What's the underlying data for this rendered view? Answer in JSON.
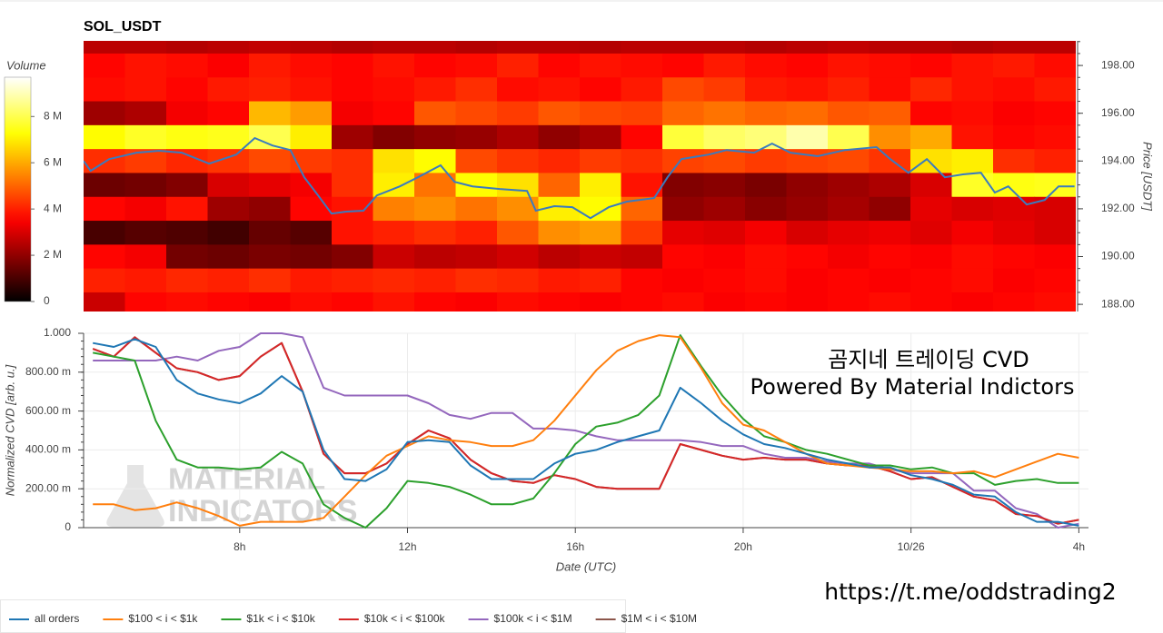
{
  "chart_data": [
    {
      "type": "heatmap",
      "title": "SOL_USDT",
      "y_label": "Price [USDT]",
      "colorbar_label": "Volume",
      "colormap": "hot",
      "xlim": [
        4.28,
        27.93
      ],
      "y": [
        199,
        198,
        197,
        196,
        195,
        194,
        193,
        192,
        191,
        190,
        189,
        188
      ],
      "ylim": [
        187.7,
        199.03
      ],
      "yticks": [
        {
          "value": 188,
          "label": "188.00"
        },
        {
          "value": 190,
          "label": "190.00"
        },
        {
          "value": 192,
          "label": "192.00"
        },
        {
          "value": 194,
          "label": "194.00"
        },
        {
          "value": 196,
          "label": "196.00"
        },
        {
          "value": 198,
          "label": "198.00"
        }
      ],
      "clim": [
        0,
        9700000.0
      ],
      "cticks": [
        0,
        {
          "value": 2000000.0,
          "label": "2 M"
        },
        {
          "value": 4000000.0,
          "label": "4 M"
        },
        {
          "value": 6000000.0,
          "label": "6 M"
        },
        {
          "value": 8000000.0,
          "label": "8 M"
        }
      ],
      "values": [
        [
          2600000.0,
          2600000.0,
          2500000.0,
          2600000.0,
          2700000.0,
          2600000.0,
          2500000.0,
          2600000.0,
          2600000.0,
          2500000.0,
          2600000.0,
          2600000.0,
          2500000.0,
          2600000.0,
          2600000.0,
          2600000.0,
          2500000.0,
          2600000.0,
          2700000.0,
          2600000.0,
          2600000.0,
          2500000.0,
          2600000.0,
          2600000.0
        ],
        [
          3600000.0,
          3800000.0,
          3700000.0,
          3500000.0,
          3900000.0,
          3700000.0,
          3600000.0,
          3800000.0,
          3600000.0,
          3700000.0,
          4000000.0,
          3600000.0,
          3800000.0,
          3700000.0,
          3600000.0,
          3900000.0,
          3700000.0,
          3600000.0,
          3800000.0,
          3700000.0,
          3600000.0,
          3800000.0,
          3900000.0,
          3700000.0
        ],
        [
          3700000.0,
          3800000.0,
          3600000.0,
          3900000.0,
          4000000.0,
          3800000.0,
          3600000.0,
          3700000.0,
          3900000.0,
          4200000.0,
          3700000.0,
          3800000.0,
          3600000.0,
          3900000.0,
          4600000.0,
          4400000.0,
          3900000.0,
          3800000.0,
          4000000.0,
          3700000.0,
          4100000.0,
          3800000.0,
          3700000.0,
          3900000.0
        ],
        [
          2200000.0,
          2400000.0,
          3400000.0,
          3600000.0,
          6200000.0,
          5800000.0,
          3400000.0,
          3600000.0,
          4800000.0,
          4600000.0,
          4400000.0,
          4800000.0,
          4600000.0,
          4500000.0,
          5000000.0,
          5200000.0,
          5000000.0,
          5100000.0,
          4800000.0,
          4900000.0,
          3600000.0,
          3700000.0,
          3500000.0,
          3600000.0
        ],
        [
          7200000.0,
          7600000.0,
          7400000.0,
          7500000.0,
          8000000.0,
          7000000.0,
          2200000.0,
          1800000.0,
          2000000.0,
          2100000.0,
          2400000.0,
          2000000.0,
          2300000.0,
          3600000.0,
          7800000.0,
          8200000.0,
          8400000.0,
          8900000.0,
          8000000.0,
          5600000.0,
          6000000.0,
          3800000.0,
          3600000.0,
          3700000.0
        ],
        [
          4200000.0,
          4400000.0,
          4100000.0,
          4300000.0,
          4600000.0,
          4400000.0,
          4200000.0,
          6800000.0,
          7200000.0,
          4600000.0,
          4300000.0,
          4100000.0,
          4400000.0,
          4200000.0,
          4500000.0,
          4600000.0,
          4400000.0,
          4500000.0,
          4600000.0,
          4300000.0,
          6800000.0,
          7000000.0,
          4200000.0,
          4000000.0
        ],
        [
          1500000.0,
          1600000.0,
          1800000.0,
          3000000.0,
          3200000.0,
          3400000.0,
          4200000.0,
          7000000.0,
          5200000.0,
          7200000.0,
          6800000.0,
          5000000.0,
          7000000.0,
          3800000.0,
          1800000.0,
          1900000.0,
          1700000.0,
          2000000.0,
          2200000.0,
          2400000.0,
          3000000.0,
          7600000.0,
          7400000.0,
          7500000.0
        ],
        [
          3600000.0,
          3400000.0,
          3800000.0,
          2200000.0,
          2000000.0,
          3600000.0,
          3800000.0,
          5400000.0,
          5600000.0,
          5200000.0,
          5600000.0,
          7000000.0,
          7200000.0,
          5000000.0,
          2000000.0,
          2200000.0,
          1900000.0,
          2100000.0,
          2300000.0,
          2000000.0,
          3200000.0,
          3000000.0,
          3100000.0,
          3000000.0
        ],
        [
          1000000.0,
          1200000.0,
          1100000.0,
          900000.0,
          1400000.0,
          1200000.0,
          3800000.0,
          4000000.0,
          4200000.0,
          4000000.0,
          4800000.0,
          5600000.0,
          5800000.0,
          4400000.0,
          3200000.0,
          3100000.0,
          3400000.0,
          3000000.0,
          3200000.0,
          3300000.0,
          3100000.0,
          3400000.0,
          3200000.0,
          3000000.0
        ],
        [
          3600000.0,
          3400000.0,
          1600000.0,
          1500000.0,
          1700000.0,
          1600000.0,
          1800000.0,
          2800000.0,
          2600000.0,
          2700000.0,
          2900000.0,
          2600000.0,
          2800000.0,
          2700000.0,
          3600000.0,
          3500000.0,
          3700000.0,
          3600000.0,
          3400000.0,
          3600000.0,
          3500000.0,
          3700000.0,
          3600000.0,
          3500000.0
        ],
        [
          4000000.0,
          3900000.0,
          4100000.0,
          4000000.0,
          4200000.0,
          3900000.0,
          4000000.0,
          4100000.0,
          4000000.0,
          4200000.0,
          4100000.0,
          3900000.0,
          4000000.0,
          3600000.0,
          3500000.0,
          3600000.0,
          3700000.0,
          3500000.0,
          3600000.0,
          3500000.0,
          3600000.0,
          3700000.0,
          3500000.0,
          3600000.0
        ],
        [
          2800000.0,
          3600000.0,
          3700000.0,
          3600000.0,
          3500000.0,
          3700000.0,
          3600000.0,
          3800000.0,
          3600000.0,
          3500000.0,
          3700000.0,
          3600000.0,
          3500000.0,
          3600000.0,
          3700000.0,
          3500000.0,
          3600000.0,
          3500000.0,
          3600000.0,
          3700000.0,
          3600000.0,
          3500000.0,
          3600000.0,
          3700000.0
        ]
      ],
      "line": {
        "color": "#3a7bbf",
        "x": [
          4.28,
          4.45,
          4.89,
          5.54,
          6.08,
          6.62,
          7.27,
          7.92,
          8.36,
          8.78,
          9.21,
          9.54,
          9.87,
          10.19,
          10.52,
          10.95,
          11.27,
          11.82,
          12.25,
          12.79,
          13.12,
          13.55,
          14.2,
          14.85,
          15.06,
          15.5,
          15.93,
          16.36,
          16.8,
          17.23,
          17.88,
          18.2,
          18.53,
          19.18,
          19.61,
          20.26,
          20.69,
          21.13,
          21.78,
          22.43,
          23.18,
          23.51,
          23.94,
          24.38,
          24.81,
          25.24,
          25.67,
          26.0,
          26.32,
          26.76,
          27.19,
          27.52,
          27.9
        ],
        "values": [
          194.0,
          193.59,
          194.08,
          194.35,
          194.43,
          194.35,
          193.89,
          194.27,
          194.96,
          194.65,
          194.46,
          193.32,
          192.56,
          191.8,
          191.88,
          191.92,
          192.56,
          192.94,
          193.32,
          193.82,
          193.13,
          192.94,
          192.83,
          192.75,
          191.92,
          192.11,
          192.07,
          191.61,
          192.07,
          192.3,
          192.45,
          193.32,
          194.08,
          194.27,
          194.46,
          194.35,
          194.73,
          194.35,
          194.2,
          194.46,
          194.58,
          194.08,
          193.51,
          194.08,
          193.32,
          193.44,
          193.51,
          192.68,
          192.94,
          192.18,
          192.37,
          192.94,
          192.94
        ]
      }
    },
    {
      "type": "line",
      "x_label": "Date (UTC)",
      "y_label": "Normalized CVD [arb. u.]",
      "grid": true,
      "xlim": [
        4.28,
        28.23
      ],
      "xticks": [
        {
          "value": 8,
          "label": "8h"
        },
        {
          "value": 12,
          "label": "12h"
        },
        {
          "value": 16,
          "label": "16h"
        },
        {
          "value": 20,
          "label": "20h"
        },
        {
          "value": 24,
          "label": "10/26"
        },
        {
          "value": 28,
          "label": "4h"
        }
      ],
      "ylim": [
        0,
        1
      ],
      "yticks": [
        0,
        {
          "value": 0.2,
          "label": "200.00 m"
        },
        {
          "value": 0.4,
          "label": "400.00 m"
        },
        {
          "value": 0.6,
          "label": "600.00 m"
        },
        {
          "value": 0.8,
          "label": "800.00 m"
        },
        {
          "value": 1,
          "label": "1.000"
        }
      ],
      "x": [
        4.5,
        5,
        5.5,
        6,
        6.5,
        7,
        7.5,
        8,
        8.5,
        9,
        9.5,
        10,
        10.5,
        11,
        11.5,
        12,
        12.5,
        13,
        13.5,
        14,
        14.5,
        15,
        15.5,
        16,
        16.5,
        17,
        17.5,
        18,
        18.5,
        19,
        19.5,
        20,
        20.5,
        21,
        21.5,
        22,
        22.5,
        23,
        23.5,
        24,
        24.5,
        25,
        25.5,
        26,
        26.5,
        27,
        27.5,
        28
      ],
      "series": [
        {
          "name": "all orders",
          "color": "#1f77b4",
          "values": [
            0.95,
            0.93,
            0.97,
            0.93,
            0.76,
            0.69,
            0.66,
            0.64,
            0.69,
            0.78,
            0.7,
            0.4,
            0.25,
            0.24,
            0.3,
            0.44,
            0.45,
            0.44,
            0.32,
            0.25,
            0.25,
            0.25,
            0.33,
            0.38,
            0.4,
            0.44,
            0.47,
            0.5,
            0.72,
            0.64,
            0.55,
            0.48,
            0.43,
            0.41,
            0.38,
            0.35,
            0.33,
            0.31,
            0.31,
            0.27,
            0.25,
            0.22,
            0.17,
            0.16,
            0.08,
            0.03,
            0.03,
            0.01
          ]
        },
        {
          "name": "$100 < i < $1k",
          "color": "#ff7f0e",
          "values": [
            0.12,
            0.12,
            0.09,
            0.1,
            0.13,
            0.1,
            0.06,
            0.01,
            0.03,
            0.03,
            0.03,
            0.05,
            0.16,
            0.27,
            0.37,
            0.42,
            0.47,
            0.45,
            0.44,
            0.42,
            0.42,
            0.45,
            0.55,
            0.68,
            0.81,
            0.91,
            0.96,
            0.99,
            0.98,
            0.82,
            0.64,
            0.53,
            0.5,
            0.44,
            0.38,
            0.33,
            0.32,
            0.31,
            0.3,
            0.29,
            0.29,
            0.28,
            0.29,
            0.26,
            0.3,
            0.34,
            0.38,
            0.36
          ]
        },
        {
          "name": "$1k < i < $10k",
          "color": "#2ca02c",
          "values": [
            0.9,
            0.88,
            0.86,
            0.55,
            0.35,
            0.31,
            0.31,
            0.3,
            0.31,
            0.39,
            0.33,
            0.12,
            0.05,
            0,
            0.1,
            0.24,
            0.23,
            0.21,
            0.17,
            0.12,
            0.12,
            0.15,
            0.28,
            0.43,
            0.52,
            0.54,
            0.58,
            0.68,
            0.99,
            0.83,
            0.68,
            0.56,
            0.47,
            0.44,
            0.4,
            0.38,
            0.35,
            0.32,
            0.32,
            0.3,
            0.31,
            0.28,
            0.28,
            0.22,
            0.24,
            0.25,
            0.23,
            0.23
          ]
        },
        {
          "name": "$10k < i < $100k",
          "color": "#d62728",
          "values": [
            0.92,
            0.88,
            0.98,
            0.9,
            0.82,
            0.8,
            0.76,
            0.78,
            0.88,
            0.95,
            0.7,
            0.38,
            0.28,
            0.28,
            0.33,
            0.43,
            0.5,
            0.46,
            0.35,
            0.28,
            0.24,
            0.23,
            0.27,
            0.25,
            0.21,
            0.2,
            0.2,
            0.2,
            0.43,
            0.4,
            0.37,
            0.35,
            0.36,
            0.35,
            0.35,
            0.33,
            0.32,
            0.32,
            0.29,
            0.25,
            0.26,
            0.21,
            0.16,
            0.14,
            0.07,
            0.06,
            0.02,
            0.04
          ]
        },
        {
          "name": "$100k < i < $1M",
          "color": "#9467bd",
          "values": [
            0.86,
            0.86,
            0.86,
            0.86,
            0.88,
            0.86,
            0.91,
            0.93,
            1,
            1,
            0.98,
            0.72,
            0.68,
            0.68,
            0.68,
            0.68,
            0.64,
            0.58,
            0.56,
            0.59,
            0.59,
            0.51,
            0.51,
            0.5,
            0.47,
            0.45,
            0.45,
            0.45,
            0.45,
            0.44,
            0.42,
            0.42,
            0.38,
            0.36,
            0.36,
            0.34,
            0.33,
            0.33,
            0.3,
            0.28,
            0.28,
            0.28,
            0.19,
            0.19,
            0.1,
            0.07,
            0,
            0.02
          ]
        },
        {
          "name": "$1M < i < $10M",
          "color": "#8c564b",
          "values": [
            0.92,
            0.88,
            0.98,
            0.9,
            0.82,
            0.8,
            0.76,
            0.78,
            0.88,
            0.95,
            0.7,
            0.38,
            0.28,
            0.28,
            0.33,
            0.43,
            0.5,
            0.46,
            0.35,
            0.28,
            0.24,
            0.23,
            0.27,
            0.25,
            0.21,
            0.2,
            0.2,
            0.2,
            0.43,
            0.4,
            0.37,
            0.35,
            0.36,
            0.35,
            0.35,
            0.33,
            0.32,
            0.32,
            0.29,
            0.25,
            0.26,
            0.21,
            0.16,
            0.14,
            0.07,
            0.06,
            0.02,
            0.04
          ]
        }
      ],
      "annotations": [
        "곰지네 트레이딩 CVD",
        "Powered By Material Indictors",
        "https://t.me/oddstrading2"
      ],
      "watermark": [
        "MATERIAL",
        "INDICATORS"
      ]
    }
  ]
}
